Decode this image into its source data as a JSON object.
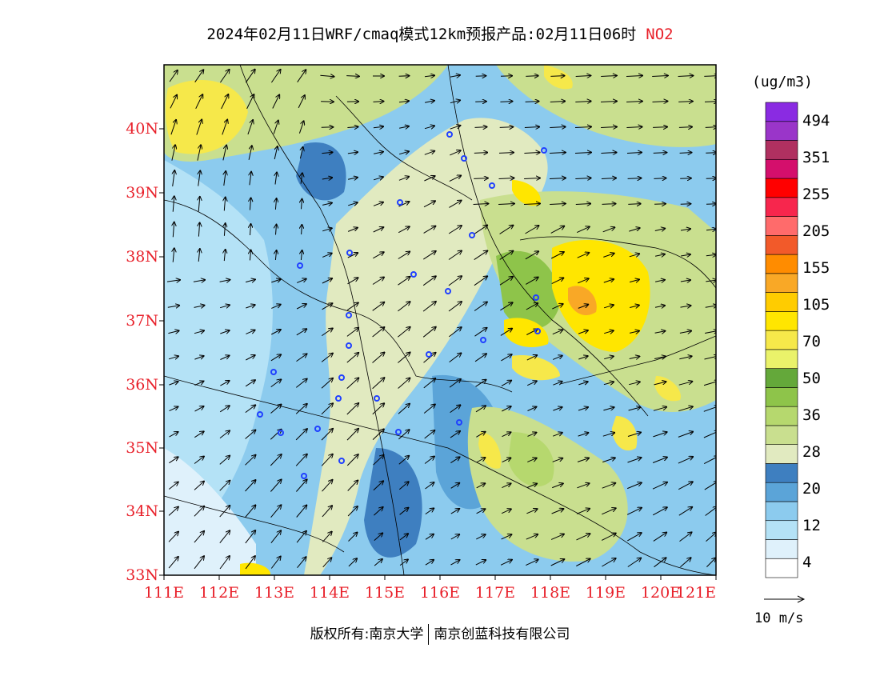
{
  "title": {
    "main": "2024年02月11日WRF/cmaq模式12km预报产品:02月11日06时",
    "pollutant": "NO2"
  },
  "map": {
    "lat_labels": [
      "40N",
      "39N",
      "38N",
      "37N",
      "36N",
      "35N",
      "34N",
      "33N"
    ],
    "lon_labels": [
      "111E",
      "112E",
      "113E",
      "114E",
      "115E",
      "116E",
      "117E",
      "118E",
      "119E",
      "120E",
      "121E"
    ]
  },
  "colorbar": {
    "title": "(ug/m3)",
    "colors": [
      "#ffffff",
      "#dff1fb",
      "#b4e2f6",
      "#8ccbee",
      "#5ba4d8",
      "#3e7fc0",
      "#e1eac0",
      "#c9df8f",
      "#b6d86e",
      "#8ec44a",
      "#64a83a",
      "#eaf26a",
      "#f6e84a",
      "#ffe600",
      "#ffcc00",
      "#f9a826",
      "#ff8c00",
      "#f25a2a",
      "#ff6b6b",
      "#f7264d",
      "#ff0000",
      "#d40f6c",
      "#b03060",
      "#9a35c9",
      "#8a2be2"
    ],
    "labels": [
      "4",
      "12",
      "20",
      "28",
      "36",
      "50",
      "70",
      "105",
      "155",
      "205",
      "255",
      "351",
      "494"
    ]
  },
  "wind_vector": {
    "label": "10 m/s"
  },
  "footer": {
    "left": "版权所有:南京大学",
    "right": "南京创蓝科技有限公司"
  },
  "map_colors": {
    "blue_dark": "#3e7fc0",
    "blue_mid": "#5ba4d8",
    "blue_light": "#8ccbee",
    "blue_pale": "#b4e2f6",
    "green_pale": "#e1eac0",
    "green_light": "#c9df8f",
    "green_mid": "#b6d86e",
    "green_dark": "#8ec44a",
    "yellow": "#ffe600",
    "orange": "#f9a826"
  }
}
